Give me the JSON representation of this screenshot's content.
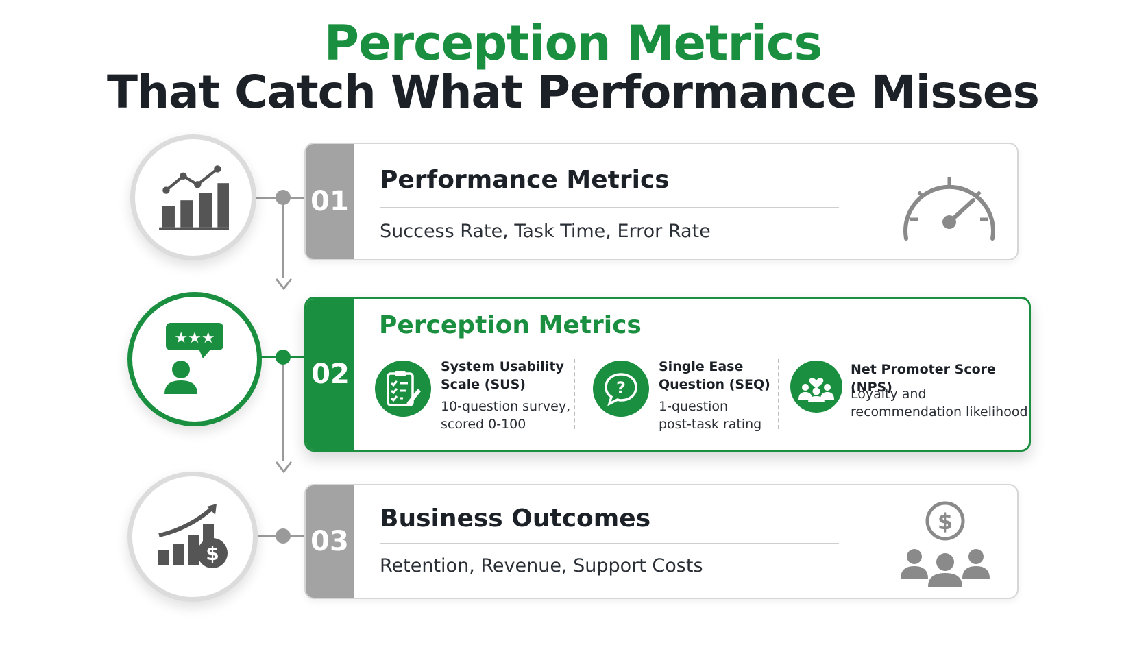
{
  "title": {
    "line1": "Perception Metrics",
    "line2": "That Catch What Performance Misses"
  },
  "colors": {
    "accent": "#1a8f3f",
    "neutral": "#a3a3a3",
    "text": "#1c2128"
  },
  "steps": [
    {
      "number": "01",
      "title": "Performance Metrics",
      "subtitle": "Success Rate, Task Time, Error Rate",
      "circle_icon": "bar-chart-line-icon",
      "side_icon": "speedometer-icon"
    },
    {
      "number": "02",
      "title": "Perception Metrics",
      "circle_icon": "rating-user-icon",
      "metrics": [
        {
          "name_line1": "System Usability",
          "name_line2": "Scale (SUS)",
          "desc_line1": "10-question survey,",
          "desc_line2": "scored 0-100",
          "icon": "clipboard-checklist-icon"
        },
        {
          "name_line1": "Single Ease",
          "name_line2": "Question (SEQ)",
          "desc_line1": "1-question",
          "desc_line2": "post-task rating",
          "icon": "question-bubble-icon"
        },
        {
          "name_line1": "Net Promoter Score (NPS)",
          "name_line2": "",
          "desc_line1": "Loyalty and",
          "desc_line2": "recommendation likelihood",
          "icon": "people-heart-icon"
        }
      ]
    },
    {
      "number": "03",
      "title": "Business Outcomes",
      "subtitle": "Retention, Revenue, Support Costs",
      "circle_icon": "growth-dollar-icon",
      "side_icon": "people-dollar-icon"
    }
  ]
}
